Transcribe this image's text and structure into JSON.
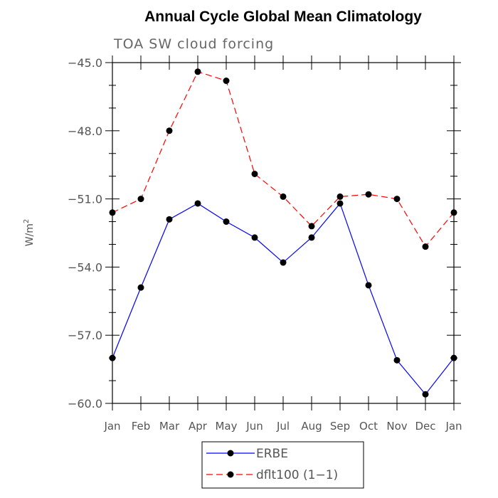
{
  "chart_data": {
    "type": "line",
    "title": "Annual Cycle Global Mean Climatology",
    "subtitle": "TOA SW cloud forcing",
    "ylabel": "W/m",
    "ylabel_sup": "2",
    "xlabel": "",
    "categories": [
      "Jan",
      "Feb",
      "Mar",
      "Apr",
      "May",
      "Jun",
      "Jul",
      "Aug",
      "Sep",
      "Oct",
      "Nov",
      "Dec",
      "Jan"
    ],
    "ylim": [
      -60.0,
      -45.0
    ],
    "yticks": [
      -60.0,
      -57.0,
      -54.0,
      -51.0,
      -48.0,
      -45.0
    ],
    "ytick_labels": [
      "−60.0",
      "−57.0",
      "−54.0",
      "−51.0",
      "−48.0",
      "−45.0"
    ],
    "series": [
      {
        "name": "ERBE",
        "color": "#0000ff",
        "dash": "solid",
        "values": [
          -58.0,
          -54.9,
          -51.9,
          -51.2,
          -52.0,
          -52.7,
          -53.8,
          -52.7,
          -51.2,
          -54.8,
          -58.1,
          -59.6,
          -58.0
        ]
      },
      {
        "name": "dflt100 (1−1)",
        "color": "#ff0000",
        "dash": "dashed",
        "values": [
          -51.6,
          -51.0,
          -48.0,
          -45.4,
          -45.8,
          -49.9,
          -50.9,
          -52.2,
          -50.9,
          -50.8,
          -51.0,
          -53.1,
          -51.6
        ]
      }
    ],
    "legend": "bottom-center",
    "grid": false
  }
}
